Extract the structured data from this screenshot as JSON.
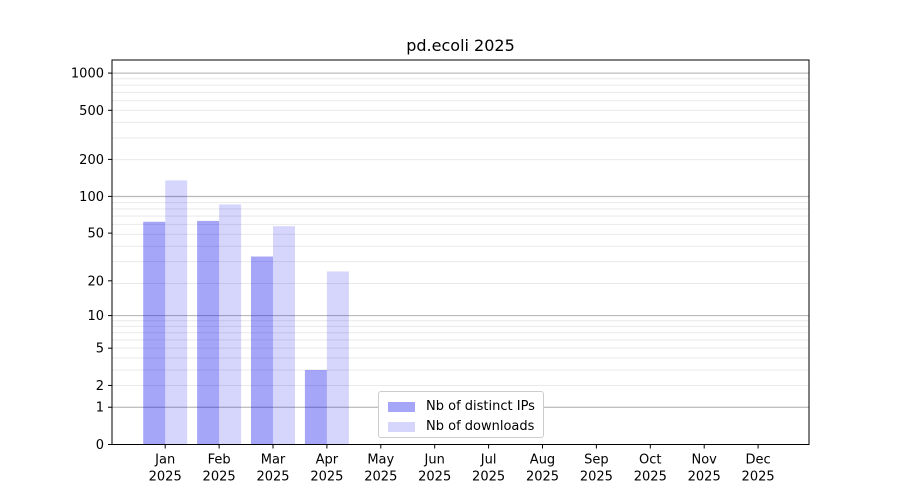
{
  "title": "pd.ecoli 2025",
  "chart_data": {
    "type": "bar",
    "title": "pd.ecoli 2025",
    "x_categories": [
      "Jan",
      "Feb",
      "Mar",
      "Apr",
      "May",
      "Jun",
      "Jul",
      "Aug",
      "Sep",
      "Oct",
      "Nov",
      "Dec"
    ],
    "x_year": "2025",
    "series": [
      {
        "name": "Nb of distinct IPs",
        "color": "rgba(0,0,238,0.35)",
        "values": [
          62,
          63,
          32,
          3,
          0,
          0,
          0,
          0,
          0,
          0,
          0,
          0
        ]
      },
      {
        "name": "Nb of downloads",
        "color": "rgba(0,0,238,0.16)",
        "values": [
          135,
          86,
          57,
          24,
          0,
          0,
          0,
          0,
          0,
          0,
          0,
          0
        ]
      }
    ],
    "y_scale": "log10(1+y)",
    "y_tick_values": [
      0,
      1,
      2,
      5,
      10,
      20,
      50,
      100,
      200,
      500,
      1000
    ],
    "y_major_gridlines": [
      1,
      10,
      100,
      1000
    ],
    "y_minor_gridlines": {
      "multiples": [
        2,
        3,
        4,
        5,
        6,
        7,
        8,
        9,
        10
      ],
      "decades": [
        1,
        10,
        100
      ]
    },
    "ylim": [
      0,
      1276
    ],
    "grid": true,
    "legend_position": "lower center-right inside axes"
  },
  "legend": {
    "items": [
      {
        "label": "Nb of distinct IPs"
      },
      {
        "label": "Nb of downloads"
      }
    ]
  },
  "colors": {
    "grid_major": "#b0b0b0",
    "grid_minor": "#e9e9e9",
    "axis": "#000000",
    "background": "#ffffff"
  }
}
